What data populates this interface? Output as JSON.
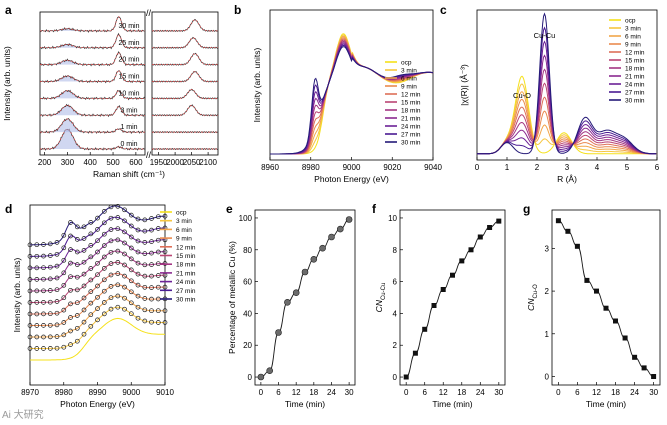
{
  "watermark": "Ai 大研究",
  "colors": [
    "#f5e11a",
    "#f6c640",
    "#f2a64a",
    "#ea8a4f",
    "#de6f58",
    "#cf5765",
    "#bb4574",
    "#a43683",
    "#8a2a90",
    "#6c2196",
    "#4a1b93",
    "#251a78"
  ],
  "chart_data": [
    {
      "panel": "a",
      "type": "line",
      "xlabel": "Raman shift (cm⁻¹)",
      "ylabel": "Intensity (arb. units)",
      "xticks_left": [
        200,
        300,
        400,
        500,
        600
      ],
      "xticks_right": [
        1950,
        2000,
        2050,
        2100
      ],
      "xlim_left": [
        180,
        640
      ],
      "xlim_right": [
        1930,
        2130
      ],
      "series": [
        {
          "name": "0 min",
          "peaks_left": [
            [
              300,
              18
            ],
            [
              525,
              2
            ]
          ],
          "peaks_right": []
        },
        {
          "name": "1 min",
          "peaks_left": [
            [
              300,
              12
            ],
            [
              525,
              3
            ]
          ],
          "peaks_right": []
        },
        {
          "name": "3 min",
          "peaks_left": [
            [
              300,
              9
            ],
            [
              525,
              8
            ]
          ],
          "peaks_right": [
            [
              2050,
              9
            ]
          ]
        },
        {
          "name": "10 min",
          "peaks_left": [
            [
              300,
              7
            ],
            [
              525,
              7
            ]
          ],
          "peaks_right": [
            [
              2050,
              8
            ]
          ]
        },
        {
          "name": "15 min",
          "peaks_left": [
            [
              300,
              5
            ],
            [
              525,
              10
            ]
          ],
          "peaks_right": [
            [
              2060,
              9
            ]
          ]
        },
        {
          "name": "20 min",
          "peaks_left": [
            [
              300,
              4
            ],
            [
              525,
              11
            ]
          ],
          "peaks_right": [
            [
              2060,
              10
            ]
          ]
        },
        {
          "name": "25 min",
          "peaks_left": [
            [
              300,
              3
            ],
            [
              525,
              12
            ]
          ],
          "peaks_right": [
            [
              2055,
              9
            ]
          ]
        },
        {
          "name": "30 min",
          "peaks_left": [
            [
              300,
              2
            ],
            [
              525,
              13
            ]
          ],
          "peaks_right": [
            [
              2060,
              10
            ]
          ]
        }
      ]
    },
    {
      "panel": "b",
      "type": "line",
      "xlabel": "Photon Energy (eV)",
      "ylabel": "Intensity (arb. units)",
      "xlim": [
        8960,
        9040
      ],
      "xticks": [
        8960,
        8980,
        9000,
        9020,
        9040
      ],
      "series": [
        "ocp",
        "3 min",
        "6 min",
        "9 min",
        "12 min",
        "15 min",
        "18 min",
        "21 min",
        "24 min",
        "27 min",
        "30 min"
      ]
    },
    {
      "panel": "c",
      "type": "line",
      "xlabel": "R (Å)",
      "ylabel": "|χ(R)| (Å⁻³)",
      "xlim": [
        0,
        6
      ],
      "xticks": [
        0,
        1,
        2,
        3,
        4,
        5,
        6
      ],
      "annotations": [
        "Cu-Cu",
        "Cu-O"
      ],
      "series": [
        "ocp",
        "3 min",
        "6 min",
        "9 min",
        "12 min",
        "15 min",
        "18 min",
        "21 min",
        "24 min",
        "27 min",
        "30 min"
      ]
    },
    {
      "panel": "d",
      "type": "line",
      "xlabel": "Photon Energy (eV)",
      "ylabel": "Intensity (arb. units)",
      "xlim": [
        8970,
        9010
      ],
      "xticks": [
        8970,
        8980,
        8990,
        9000,
        9010
      ],
      "series": [
        "ocp",
        "3 min",
        "6 min",
        "9 min",
        "12 min",
        "15 min",
        "18 min",
        "21 min",
        "24 min",
        "27 min",
        "30 min"
      ]
    },
    {
      "panel": "e",
      "type": "scatter",
      "xlabel": "Time (min)",
      "ylabel": "Percentage of metallic Cu (%)",
      "xlim": [
        -2,
        32
      ],
      "ylim": [
        -5,
        105
      ],
      "xticks": [
        0,
        6,
        12,
        18,
        24,
        30
      ],
      "yticks": [
        0,
        20,
        40,
        60,
        80,
        100
      ],
      "x": [
        0,
        3,
        6,
        9,
        12,
        15,
        18,
        21,
        24,
        27,
        30
      ],
      "y": [
        0,
        4,
        28,
        47,
        53,
        66,
        74,
        81,
        88,
        93,
        99
      ]
    },
    {
      "panel": "f",
      "type": "scatter",
      "xlabel": "Time (min)",
      "ylabel": "CN",
      "ylabel_sub": "Cu-Cu",
      "xlim": [
        -2,
        32
      ],
      "ylim": [
        -0.5,
        10.5
      ],
      "xticks": [
        0,
        6,
        12,
        18,
        24,
        30
      ],
      "yticks": [
        0,
        2,
        4,
        6,
        8,
        10
      ],
      "x": [
        0,
        3,
        6,
        9,
        12,
        15,
        18,
        21,
        24,
        27,
        30
      ],
      "y": [
        0,
        1.5,
        3.0,
        4.5,
        5.5,
        6.4,
        7.3,
        8.0,
        8.8,
        9.4,
        9.8
      ]
    },
    {
      "panel": "g",
      "type": "scatter",
      "xlabel": "Time (min)",
      "ylabel": "CN",
      "ylabel_sub": "Cu-O",
      "xlim": [
        -2,
        32
      ],
      "ylim": [
        -0.2,
        3.9
      ],
      "xticks": [
        0,
        6,
        12,
        18,
        24,
        30
      ],
      "yticks": [
        0,
        1,
        2,
        3
      ],
      "x": [
        0,
        3,
        6,
        9,
        12,
        15,
        18,
        21,
        24,
        27,
        30
      ],
      "y": [
        3.65,
        3.4,
        3.05,
        2.25,
        2.0,
        1.6,
        1.3,
        0.9,
        0.45,
        0.2,
        0.0
      ]
    }
  ]
}
